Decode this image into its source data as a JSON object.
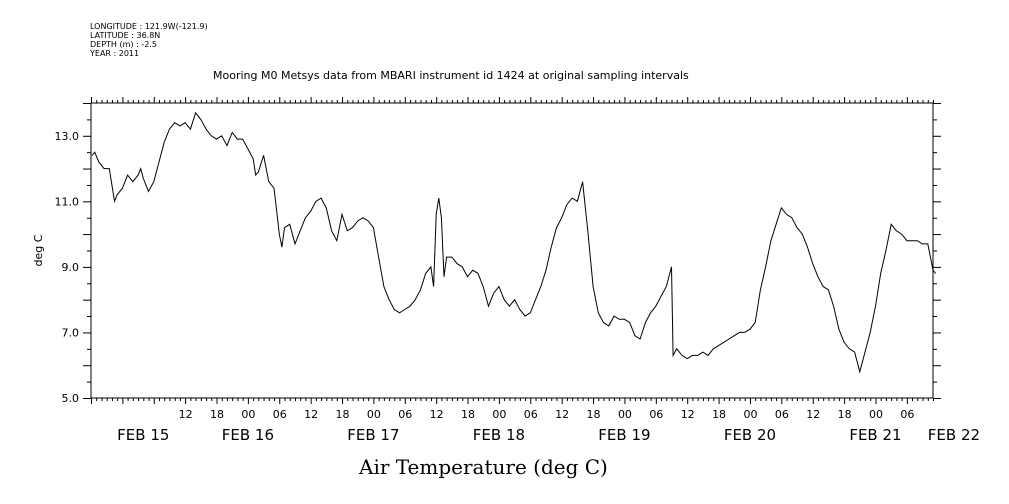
{
  "header": {
    "longitude": "LONGITUDE : 121.9W(-121.9)",
    "latitude": "LATITUDE : 36.8N",
    "depth": "DEPTH (m) : -2.5",
    "year": "YEAR : 2011"
  },
  "chart_data": {
    "type": "line",
    "title": "Mooring M0 Metsys data from MBARI instrument id 1424 at original sampling intervals",
    "xlabel": "Air Temperature (deg C)",
    "ylabel": "deg C",
    "ylim": [
      5.0,
      14.0
    ],
    "xlim_hours": [
      -6,
      155
    ],
    "y_ticks": [
      "5.0",
      "7.0",
      "9.0",
      "11.0",
      "13.0"
    ],
    "y_tick_values": [
      5,
      7,
      9,
      11,
      13
    ],
    "x_hour_labels": [
      {
        "text": "12",
        "h": 12
      },
      {
        "text": "18",
        "h": 18
      },
      {
        "text": "00",
        "h": 24
      },
      {
        "text": "06",
        "h": 30
      },
      {
        "text": "12",
        "h": 36
      },
      {
        "text": "18",
        "h": 42
      },
      {
        "text": "00",
        "h": 48
      },
      {
        "text": "06",
        "h": 54
      },
      {
        "text": "12",
        "h": 60
      },
      {
        "text": "18",
        "h": 66
      },
      {
        "text": "00",
        "h": 72
      },
      {
        "text": "06",
        "h": 78
      },
      {
        "text": "12",
        "h": 84
      },
      {
        "text": "18",
        "h": 90
      },
      {
        "text": "00",
        "h": 96
      },
      {
        "text": "06",
        "h": 102
      },
      {
        "text": "12",
        "h": 108
      },
      {
        "text": "18",
        "h": 114
      },
      {
        "text": "00",
        "h": 120
      },
      {
        "text": "06",
        "h": 126
      },
      {
        "text": "12",
        "h": 132
      },
      {
        "text": "18",
        "h": 138
      },
      {
        "text": "00",
        "h": 144
      },
      {
        "text": "06",
        "h": 150
      }
    ],
    "x_date_labels": [
      {
        "text": "FEB 15",
        "h": 4
      },
      {
        "text": "FEB 16",
        "h": 24
      },
      {
        "text": "FEB 17",
        "h": 48
      },
      {
        "text": "FEB 18",
        "h": 72
      },
      {
        "text": "FEB 19",
        "h": 96
      },
      {
        "text": "FEB 20",
        "h": 120
      },
      {
        "text": "FEB 21",
        "h": 144
      },
      {
        "text": "FEB 22",
        "h": 159
      }
    ],
    "series": [
      {
        "values": [
          [
            -5.8,
            12.4
          ],
          [
            -5.3,
            12.5
          ],
          [
            -4.5,
            12.2
          ],
          [
            -3.5,
            12.0
          ],
          [
            -2.5,
            12.0
          ],
          [
            -2,
            11.5
          ],
          [
            -1.5,
            11.0
          ],
          [
            -1,
            11.2
          ],
          [
            0,
            11.4
          ],
          [
            0.5,
            11.6
          ],
          [
            1,
            11.8
          ],
          [
            2,
            11.6
          ],
          [
            3,
            11.8
          ],
          [
            3.5,
            12.0
          ],
          [
            4,
            11.7
          ],
          [
            4.5,
            11.5
          ],
          [
            5,
            11.3
          ],
          [
            6,
            11.6
          ],
          [
            7,
            12.2
          ],
          [
            8,
            12.8
          ],
          [
            9,
            13.2
          ],
          [
            10,
            13.4
          ],
          [
            11,
            13.3
          ],
          [
            12,
            13.4
          ],
          [
            13,
            13.2
          ],
          [
            14,
            13.7
          ],
          [
            15,
            13.5
          ],
          [
            16,
            13.2
          ],
          [
            17,
            13.0
          ],
          [
            18,
            12.9
          ],
          [
            19,
            13.0
          ],
          [
            20,
            12.7
          ],
          [
            21,
            13.1
          ],
          [
            22,
            12.9
          ],
          [
            23,
            12.9
          ],
          [
            24,
            12.6
          ],
          [
            25,
            12.3
          ],
          [
            25.5,
            11.8
          ],
          [
            26,
            11.9
          ],
          [
            27,
            12.4
          ],
          [
            28,
            11.6
          ],
          [
            29,
            11.4
          ],
          [
            29.5,
            10.7
          ],
          [
            30,
            10.0
          ],
          [
            30.5,
            9.6
          ],
          [
            31,
            10.2
          ],
          [
            32,
            10.3
          ],
          [
            33,
            9.7
          ],
          [
            34,
            10.1
          ],
          [
            35,
            10.5
          ],
          [
            36,
            10.7
          ],
          [
            37,
            11.0
          ],
          [
            38,
            11.1
          ],
          [
            39,
            10.8
          ],
          [
            40,
            10.1
          ],
          [
            41,
            9.8
          ],
          [
            42,
            10.6
          ],
          [
            43,
            10.1
          ],
          [
            44,
            10.2
          ],
          [
            45,
            10.4
          ],
          [
            46,
            10.5
          ],
          [
            47,
            10.4
          ],
          [
            48,
            10.2
          ],
          [
            49,
            9.3
          ],
          [
            50,
            8.4
          ],
          [
            51,
            8.0
          ],
          [
            52,
            7.7
          ],
          [
            53,
            7.6
          ],
          [
            54,
            7.7
          ],
          [
            55,
            7.8
          ],
          [
            56,
            8.0
          ],
          [
            57,
            8.3
          ],
          [
            58,
            8.8
          ],
          [
            59,
            9.0
          ],
          [
            59.5,
            8.4
          ],
          [
            60,
            10.6
          ],
          [
            60.5,
            11.1
          ],
          [
            61,
            10.5
          ],
          [
            61.5,
            8.7
          ],
          [
            62,
            9.3
          ],
          [
            63,
            9.3
          ],
          [
            64,
            9.1
          ],
          [
            65,
            9.0
          ],
          [
            66,
            8.7
          ],
          [
            67,
            8.9
          ],
          [
            68,
            8.8
          ],
          [
            69,
            8.4
          ],
          [
            70,
            7.8
          ],
          [
            71,
            8.2
          ],
          [
            72,
            8.4
          ],
          [
            73,
            8.0
          ],
          [
            74,
            7.8
          ],
          [
            75,
            8.0
          ],
          [
            76,
            7.7
          ],
          [
            77,
            7.5
          ],
          [
            78,
            7.6
          ],
          [
            79,
            8.0
          ],
          [
            80,
            8.4
          ],
          [
            81,
            8.9
          ],
          [
            82,
            9.6
          ],
          [
            83,
            10.2
          ],
          [
            84,
            10.5
          ],
          [
            85,
            10.9
          ],
          [
            86,
            11.1
          ],
          [
            87,
            11.0
          ],
          [
            88,
            11.6
          ],
          [
            89,
            10.1
          ],
          [
            90,
            8.4
          ],
          [
            91,
            7.6
          ],
          [
            92,
            7.3
          ],
          [
            93,
            7.2
          ],
          [
            94,
            7.5
          ],
          [
            95,
            7.4
          ],
          [
            96,
            7.4
          ],
          [
            97,
            7.3
          ],
          [
            98,
            6.9
          ],
          [
            99,
            6.8
          ],
          [
            100,
            7.3
          ],
          [
            101,
            7.6
          ],
          [
            102,
            7.8
          ],
          [
            103,
            8.1
          ],
          [
            104,
            8.4
          ],
          [
            105,
            9.0
          ],
          [
            105.3,
            6.3
          ],
          [
            106,
            6.5
          ],
          [
            107,
            6.3
          ],
          [
            108,
            6.2
          ],
          [
            109,
            6.3
          ],
          [
            110,
            6.3
          ],
          [
            111,
            6.4
          ],
          [
            112,
            6.3
          ],
          [
            113,
            6.5
          ],
          [
            114,
            6.6
          ],
          [
            115,
            6.7
          ],
          [
            116,
            6.8
          ],
          [
            117,
            6.9
          ],
          [
            118,
            7.0
          ],
          [
            119,
            7.0
          ],
          [
            120,
            7.1
          ],
          [
            121,
            7.3
          ],
          [
            122,
            8.3
          ],
          [
            123,
            9.0
          ],
          [
            124,
            9.8
          ],
          [
            125,
            10.3
          ],
          [
            126,
            10.8
          ],
          [
            127,
            10.6
          ],
          [
            128,
            10.5
          ],
          [
            129,
            10.2
          ],
          [
            130,
            10.0
          ],
          [
            131,
            9.6
          ],
          [
            132,
            9.1
          ],
          [
            133,
            8.7
          ],
          [
            134,
            8.4
          ],
          [
            135,
            8.3
          ],
          [
            136,
            7.8
          ],
          [
            137,
            7.1
          ],
          [
            138,
            6.7
          ],
          [
            139,
            6.5
          ],
          [
            140,
            6.4
          ],
          [
            141,
            5.8
          ],
          [
            142,
            6.4
          ],
          [
            143,
            7.0
          ],
          [
            144,
            7.8
          ],
          [
            145,
            8.8
          ],
          [
            146,
            9.5
          ],
          [
            147,
            10.3
          ],
          [
            148,
            10.1
          ],
          [
            149,
            10.0
          ],
          [
            150,
            9.8
          ],
          [
            151,
            9.8
          ],
          [
            152,
            9.8
          ],
          [
            153,
            9.7
          ],
          [
            154,
            9.7
          ],
          [
            155,
            8.9
          ],
          [
            155.5,
            8.8
          ]
        ]
      }
    ]
  }
}
